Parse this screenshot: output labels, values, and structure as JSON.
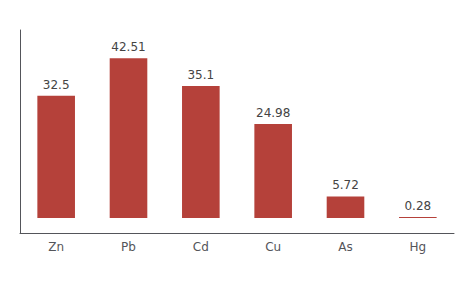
{
  "chart_data": {
    "type": "bar",
    "categories": [
      "Zn",
      "Pb",
      "Cd",
      "Cu",
      "As",
      "Hg"
    ],
    "values": [
      32.5,
      42.51,
      35.1,
      24.98,
      5.72,
      0.28
    ],
    "color": "#b5413a",
    "ylim": [
      -4,
      50
    ],
    "yticks": [],
    "grid": false,
    "data_labels": true,
    "tick_labels": "x"
  }
}
